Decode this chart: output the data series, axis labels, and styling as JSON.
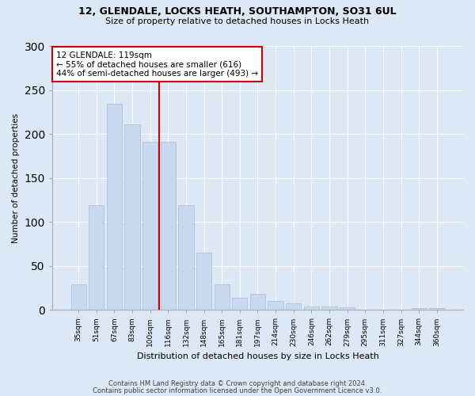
{
  "title1": "12, GLENDALE, LOCKS HEATH, SOUTHAMPTON, SO31 6UL",
  "title2": "Size of property relative to detached houses in Locks Heath",
  "xlabel": "Distribution of detached houses by size in Locks Heath",
  "ylabel": "Number of detached properties",
  "categories": [
    "35sqm",
    "51sqm",
    "67sqm",
    "83sqm",
    "100sqm",
    "116sqm",
    "132sqm",
    "148sqm",
    "165sqm",
    "181sqm",
    "197sqm",
    "214sqm",
    "230sqm",
    "246sqm",
    "262sqm",
    "279sqm",
    "295sqm",
    "311sqm",
    "327sqm",
    "344sqm",
    "360sqm"
  ],
  "values": [
    29,
    119,
    234,
    211,
    191,
    191,
    119,
    65,
    29,
    14,
    18,
    10,
    7,
    4,
    4,
    3,
    0,
    0,
    0,
    2,
    2
  ],
  "bar_color": "#c8d8ee",
  "bar_edge_color": "#aabbd8",
  "vline_color": "#cc0000",
  "annotation_text": "12 GLENDALE: 119sqm\n← 55% of detached houses are smaller (616)\n44% of semi-detached houses are larger (493) →",
  "annotation_box_color": "white",
  "annotation_box_edge_color": "#cc0000",
  "footer1": "Contains HM Land Registry data © Crown copyright and database right 2024.",
  "footer2": "Contains public sector information licensed under the Open Government Licence v3.0.",
  "ylim": [
    0,
    300
  ],
  "background_color": "#dce8f5",
  "plot_background_color": "#dce8f5"
}
